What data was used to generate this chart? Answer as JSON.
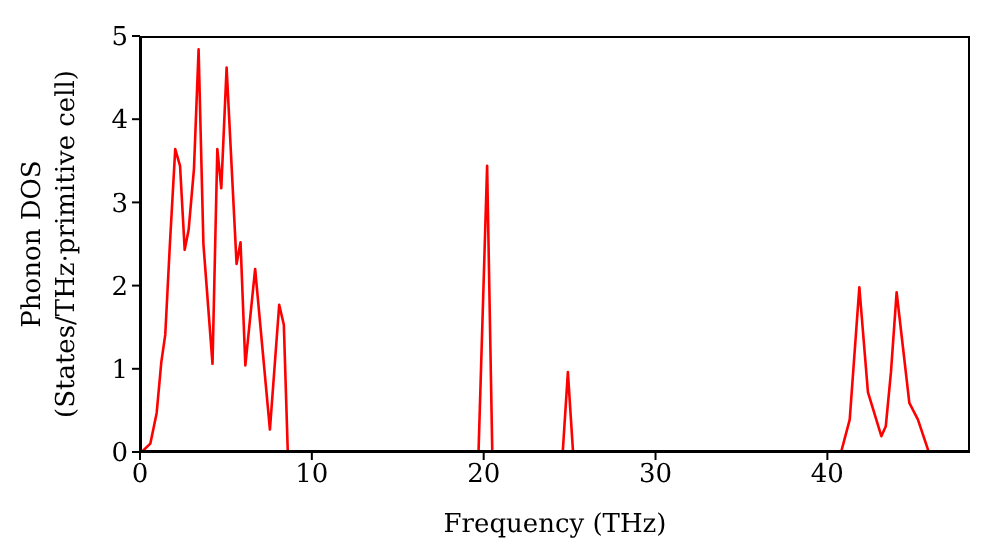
{
  "chart_data": {
    "type": "line",
    "xlabel": "Frequency (THz)",
    "ylabel": "Phonon DOS\n(States/THz·primitive cell)",
    "xlim": [
      0,
      48.3
    ],
    "ylim": [
      0,
      5
    ],
    "xticks": [
      0,
      10,
      20,
      30,
      40
    ],
    "yticks": [
      0,
      1,
      2,
      3,
      4,
      5
    ],
    "series": [
      {
        "color": "#ff0000",
        "x": [
          0,
          0.1,
          0.6,
          0.97,
          1.24,
          1.47,
          1.74,
          2.05,
          2.33,
          2.6,
          2.83,
          3.14,
          3.41,
          3.69,
          4.22,
          4.5,
          4.73,
          5.04,
          5.62,
          5.85,
          6.13,
          6.7,
          7.56,
          8.1,
          8.37,
          8.6,
          19.7,
          20.2,
          20.5,
          24.6,
          24.9,
          25.2,
          40.8,
          41.3,
          41.86,
          42.36,
          43.14,
          43.4,
          43.7,
          44.03,
          44.77,
          45.27,
          45.9,
          48.3
        ],
        "values": [
          0,
          0,
          0.1,
          0.47,
          1.08,
          1.41,
          2.5,
          3.64,
          3.44,
          2.43,
          2.67,
          3.4,
          4.84,
          2.5,
          1.06,
          3.64,
          3.17,
          4.62,
          2.26,
          2.52,
          1.04,
          2.2,
          0.27,
          1.77,
          1.53,
          0,
          0,
          3.44,
          0,
          0,
          0.96,
          0,
          0,
          0.39,
          1.98,
          0.72,
          0.19,
          0.31,
          0.96,
          1.92,
          0.59,
          0.39,
          0,
          0
        ]
      }
    ]
  }
}
